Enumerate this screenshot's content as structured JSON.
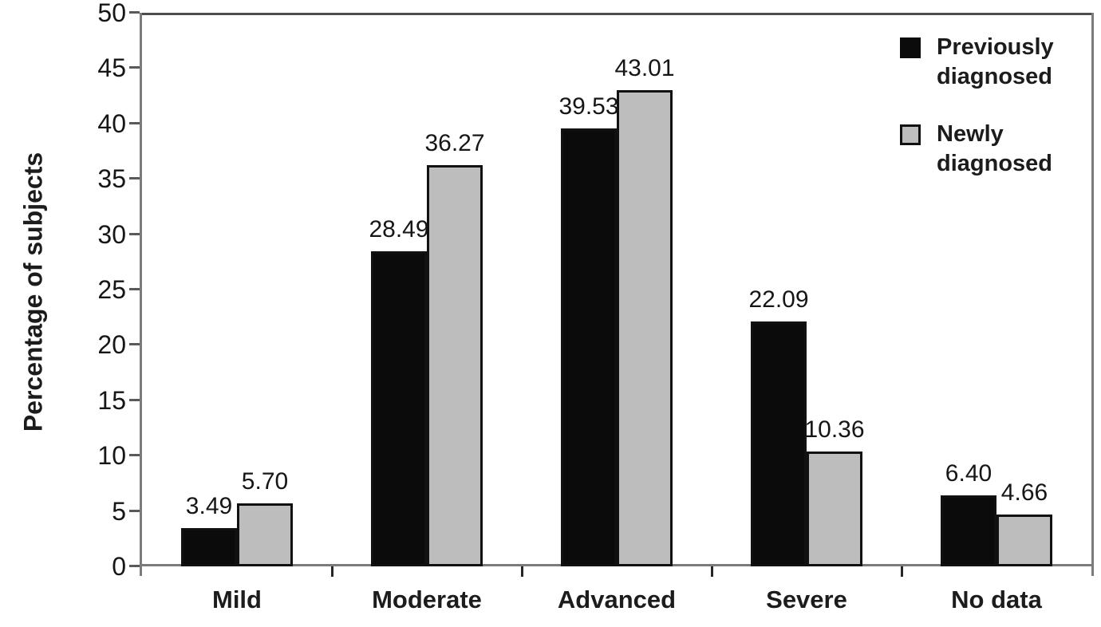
{
  "figure": {
    "background": "#ffffff"
  },
  "chart_data": {
    "type": "bar",
    "title": "",
    "xlabel": "",
    "ylabel": "Percentage of subjects",
    "categories": [
      "Mild",
      "Moderate",
      "Advanced",
      "Severe",
      "No data"
    ],
    "series": [
      {
        "name": "Previously diagnosed",
        "color": "#0b0b0b",
        "values": [
          3.49,
          28.49,
          39.53,
          22.09,
          6.4
        ]
      },
      {
        "name": "Newly diagnosed",
        "color": "#bdbdbd",
        "values": [
          5.7,
          36.27,
          43.01,
          10.36,
          4.66
        ]
      }
    ],
    "value_labels": [
      [
        "3.49",
        "28.49",
        "39.53",
        "22.09",
        "6.40"
      ],
      [
        "5.70",
        "36.27",
        "43.01",
        "10.36",
        "4.66"
      ]
    ],
    "ylim": [
      0,
      50
    ],
    "ytick_step": 5,
    "ytick_labels": [
      "0",
      "5",
      "10",
      "15",
      "20",
      "25",
      "30",
      "35",
      "40",
      "45",
      "50"
    ],
    "grid": false,
    "bar_outline_color": "#111111",
    "legend_position": "top-right-inside"
  },
  "legend": {
    "items": [
      {
        "lines": "Previously\ndiagnosed",
        "color": "#0b0b0b"
      },
      {
        "lines": "Newly\ndiagnosed",
        "color": "#bdbdbd"
      }
    ]
  }
}
